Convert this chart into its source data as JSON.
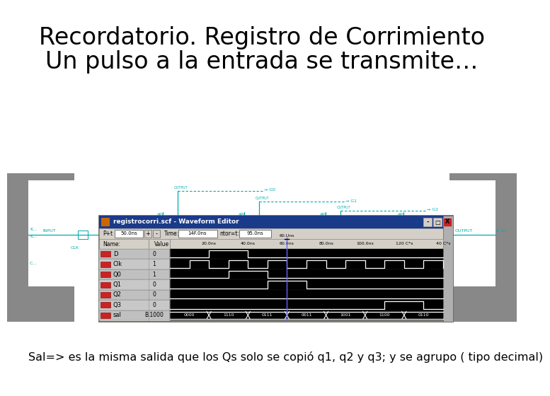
{
  "title_line1": "Recordatorio. Registro de Corrimiento",
  "title_line2": "Un pulso a la entrada se transmite…",
  "subtitle": "Sal=> es la misma salida que los Qs solo se copió q1, q2 y q3; y se agrupo ( tipo decimal)",
  "title_fontsize": 24,
  "subtitle_fontsize": 11.5,
  "bg_color": "#ffffff",
  "circuit_color": "#00aaaa",
  "waveform_title": "registrocorri.scf - Waveform Editor",
  "waveform_prf": "50.0ns",
  "waveform_time": "14F.0ns",
  "waveform_ntor": "95.0ns",
  "signal_names": [
    "D",
    "Clk",
    "Q0",
    "Q1",
    "Q2",
    "Q3",
    "sal"
  ],
  "signal_values": [
    "0",
    "1",
    "1",
    "0",
    "0",
    "0",
    "B.1000"
  ],
  "time_labels": [
    "20.0ns",
    "40.0ns",
    "60.0ns",
    "80.0ns",
    "100.0ns",
    "120 C*s",
    "40 C*s"
  ],
  "wf_bg": "#d4d0c8",
  "wf_titlebar": "#1a3a8a",
  "wf_black": "#000000",
  "wf_white": "#ffffff",
  "wf_gray_side": "#808080",
  "wf_close_btn": "#cc2222",
  "cursor_color": "#6666ff",
  "icon_color": "#cc2222"
}
